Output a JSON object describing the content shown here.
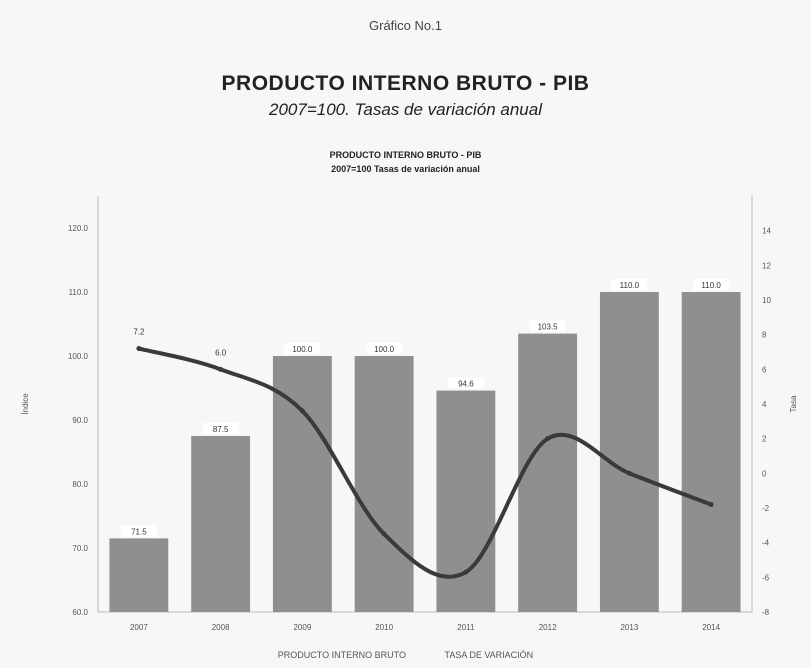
{
  "figure": {
    "caption": "Gráfico No.1",
    "title": "PRODUCTO INTERNO BRUTO - PIB",
    "subtitle": "2007=100. Tasas de variación anual",
    "inner_title_line1": "PRODUCTO INTERNO BRUTO - PIB",
    "inner_title_line2": "2007=100 Tasas de variación anual"
  },
  "chart_data": {
    "type": "bar",
    "title": "PRODUCTO INTERNO BRUTO - PIB",
    "subtitle": "2007=100. Tasas de variación anual",
    "categories": [
      "2007",
      "2008",
      "2009",
      "2010",
      "2011",
      "2012",
      "2013",
      "2014"
    ],
    "series": [
      {
        "kind": "bar",
        "axis": "left",
        "values": [
          71.5,
          87.5,
          100.0,
          100.0,
          94.6,
          103.5,
          110.0,
          110.0
        ],
        "labels": [
          "71.5",
          "87.5",
          "100.0",
          "100.0",
          "94.6",
          "103.5",
          "110.0",
          "110.0"
        ],
        "color": "#8f8f8f"
      },
      {
        "kind": "line",
        "axis": "right",
        "values": [
          7.2,
          6.0,
          3.6,
          -3.5,
          -5.7,
          2.0,
          0.0,
          -1.8
        ],
        "labels": [
          "7.2",
          "6.0",
          "",
          "",
          "",
          "",
          "",
          ""
        ],
        "color": "#3a3a3a"
      }
    ],
    "left_axis": {
      "label": "Índice",
      "ticks": [
        "60.0",
        "70.0",
        "80.0",
        "90.0",
        "100.0",
        "110.0",
        "120.0"
      ],
      "range": [
        60,
        125
      ]
    },
    "right_axis": {
      "label": "Tasa",
      "ticks": [
        "-8",
        "-6",
        "-4",
        "-2",
        "0",
        "2",
        "4",
        "6",
        "8",
        "10",
        "12",
        "14"
      ],
      "range": [
        -8,
        16
      ]
    },
    "grid": false,
    "legend": "bottom",
    "legend_entries": [
      "PRODUCTO INTERNO BRUTO",
      "TASA DE VARIACIÓN"
    ]
  }
}
